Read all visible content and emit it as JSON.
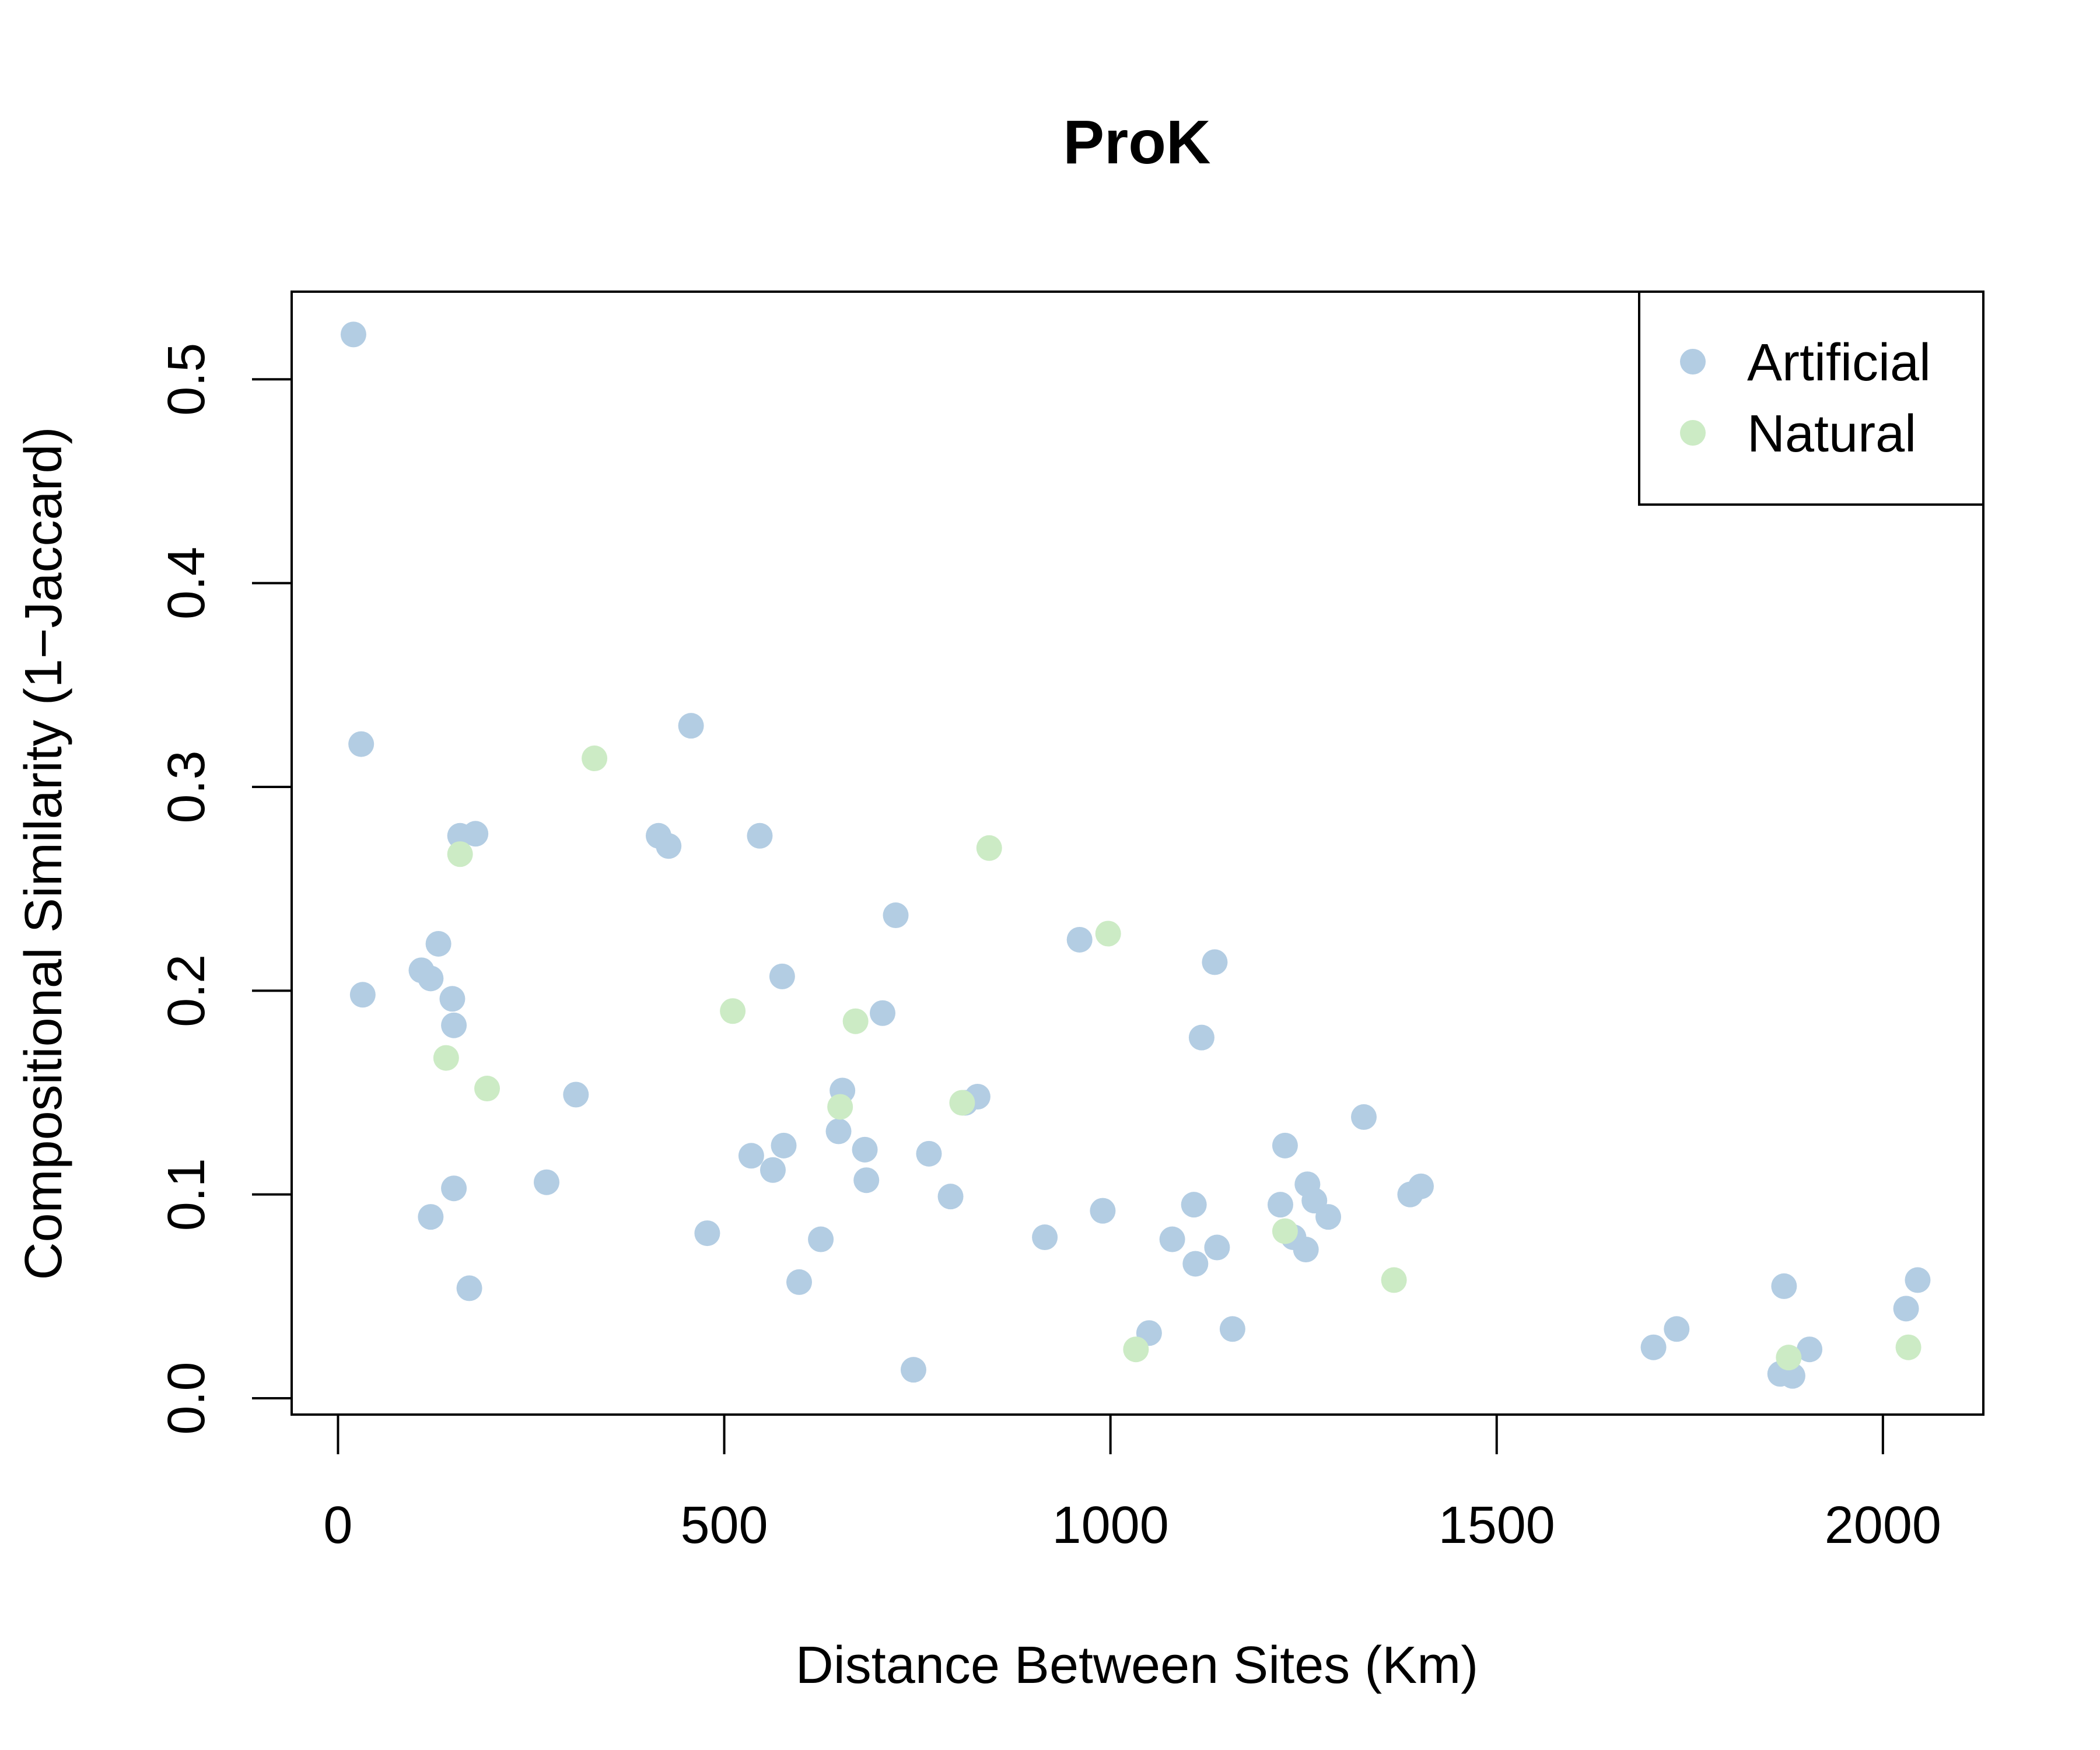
{
  "chart_data": {
    "type": "scatter",
    "title": "ProK",
    "xlabel": "Distance Between Sites (Km)",
    "ylabel": "Compositional Similarity (1−Jaccard)",
    "xlim": [
      -60,
      2130
    ],
    "ylim": [
      -0.008,
      0.543
    ],
    "xticks": [
      0,
      500,
      1000,
      1500,
      2000
    ],
    "yticks": [
      0.0,
      0.1,
      0.2,
      0.3,
      0.4,
      0.5
    ],
    "ytick_labels": [
      "0.0",
      "0.1",
      "0.2",
      "0.3",
      "0.4",
      "0.5"
    ],
    "grid": false,
    "legend_position": "top-right",
    "series": [
      {
        "name": "Artificial",
        "color": "#b3cde3",
        "points": [
          [
            20,
            0.522
          ],
          [
            30,
            0.321
          ],
          [
            32,
            0.198
          ],
          [
            108,
            0.21
          ],
          [
            120,
            0.206
          ],
          [
            130,
            0.223
          ],
          [
            120,
            0.089
          ],
          [
            148,
            0.196
          ],
          [
            150,
            0.183
          ],
          [
            150,
            0.103
          ],
          [
            158,
            0.276
          ],
          [
            178,
            0.277
          ],
          [
            170,
            0.054
          ],
          [
            270,
            0.106
          ],
          [
            308,
            0.149
          ],
          [
            415,
            0.276
          ],
          [
            428,
            0.271
          ],
          [
            457,
            0.33
          ],
          [
            478,
            0.081
          ],
          [
            535,
            0.119
          ],
          [
            546,
            0.276
          ],
          [
            563,
            0.112
          ],
          [
            575,
            0.207
          ],
          [
            577,
            0.124
          ],
          [
            597,
            0.057
          ],
          [
            625,
            0.078
          ],
          [
            648,
            0.131
          ],
          [
            653,
            0.151
          ],
          [
            682,
            0.122
          ],
          [
            684,
            0.107
          ],
          [
            705,
            0.189
          ],
          [
            722,
            0.237
          ],
          [
            745,
            0.014
          ],
          [
            765,
            0.12
          ],
          [
            793,
            0.099
          ],
          [
            812,
            0.145
          ],
          [
            828,
            0.148
          ],
          [
            915,
            0.079
          ],
          [
            960,
            0.225
          ],
          [
            990,
            0.092
          ],
          [
            1050,
            0.032
          ],
          [
            1080,
            0.078
          ],
          [
            1108,
            0.095
          ],
          [
            1110,
            0.066
          ],
          [
            1118,
            0.177
          ],
          [
            1135,
            0.214
          ],
          [
            1138,
            0.074
          ],
          [
            1158,
            0.034
          ],
          [
            1220,
            0.095
          ],
          [
            1226,
            0.124
          ],
          [
            1237,
            0.079
          ],
          [
            1253,
            0.073
          ],
          [
            1255,
            0.105
          ],
          [
            1264,
            0.097
          ],
          [
            1282,
            0.089
          ],
          [
            1328,
            0.138
          ],
          [
            1388,
            0.1
          ],
          [
            1402,
            0.104
          ],
          [
            1703,
            0.025
          ],
          [
            1733,
            0.034
          ],
          [
            1867,
            0.012
          ],
          [
            1872,
            0.055
          ],
          [
            1883,
            0.011
          ],
          [
            1905,
            0.024
          ],
          [
            2030,
            0.044
          ],
          [
            2045,
            0.058
          ]
        ]
      },
      {
        "name": "Natural",
        "color": "#ccebc5",
        "points": [
          [
            158,
            0.267
          ],
          [
            140,
            0.167
          ],
          [
            193,
            0.152
          ],
          [
            332,
            0.314
          ],
          [
            511,
            0.19
          ],
          [
            650,
            0.143
          ],
          [
            670,
            0.185
          ],
          [
            808,
            0.145
          ],
          [
            843,
            0.27
          ],
          [
            997,
            0.228
          ],
          [
            1033,
            0.024
          ],
          [
            1226,
            0.082
          ],
          [
            1367,
            0.058
          ],
          [
            1878,
            0.02
          ],
          [
            2033,
            0.025
          ]
        ]
      }
    ]
  }
}
